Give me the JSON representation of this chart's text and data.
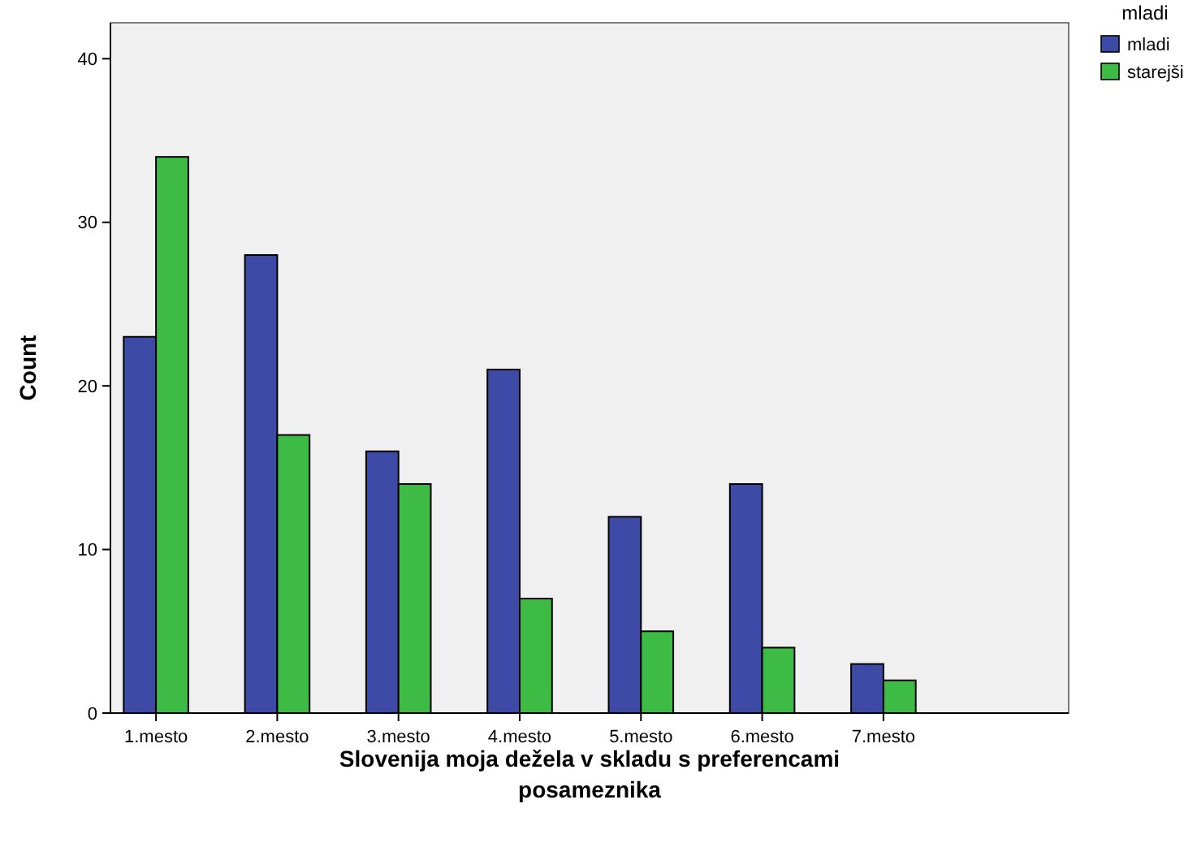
{
  "chart_data": {
    "type": "bar",
    "xlabel": "Slovenija moja dežela v skladu s preferencami posameznika",
    "ylabel": "Count",
    "legend_title": "mladi",
    "legend": "top right",
    "categories": [
      "1.mesto",
      "2.mesto",
      "3.mesto",
      "4.mesto",
      "5.mesto",
      "6.mesto",
      "7.mesto"
    ],
    "series": [
      {
        "name": "mladi",
        "color": "#3d4ba6",
        "values": [
          23,
          28,
          16,
          21,
          12,
          14,
          3
        ]
      },
      {
        "name": "starejši",
        "color": "#3dbb45",
        "values": [
          34,
          17,
          14,
          7,
          5,
          4,
          2
        ]
      }
    ],
    "ylim": [
      0,
      42.2
    ],
    "yticks": [
      0,
      10,
      20,
      30,
      40
    ],
    "grid": false
  }
}
